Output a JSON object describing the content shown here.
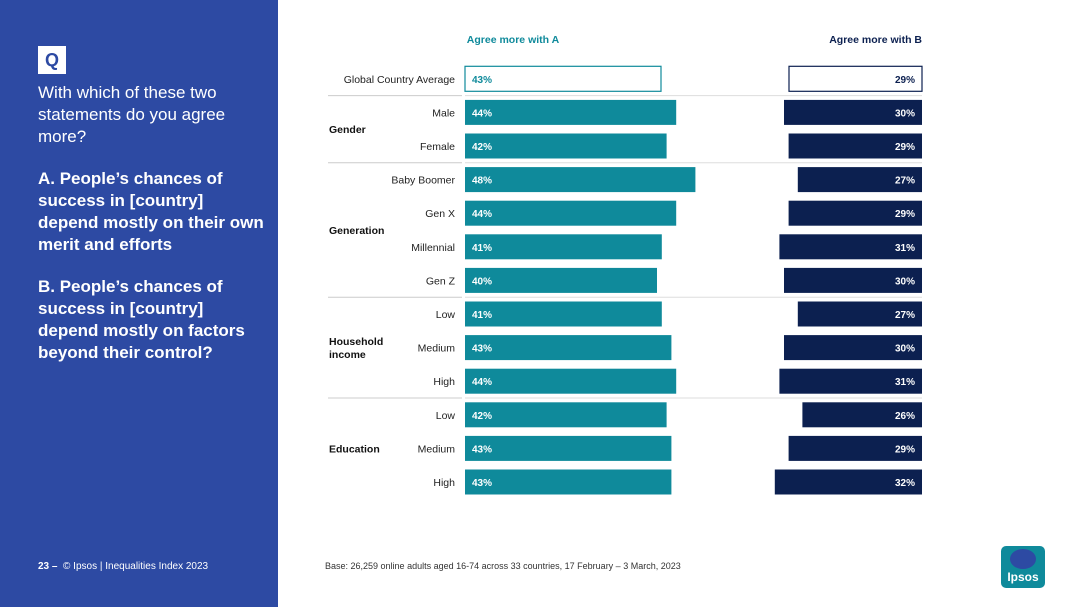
{
  "sidebar": {
    "q_badge": "Q",
    "question": "With which of these two statements do you agree more?",
    "statement_a": "A. People’s chances of success in [country] depend mostly on their own merit and efforts",
    "statement_b": "B. People’s chances of success in [country] depend mostly on factors beyond their control?",
    "page_number": "23 –",
    "footer_text": "© Ipsos | Inequalities Index 2023"
  },
  "base_note": "Base: 26,259 online adults aged 16-74 across 33 countries, 17 February – 3 March, 2023",
  "logo_text": "Ipsos",
  "colors": {
    "panel_bg": "#2d4aa3",
    "bar_a": "#0f8a9b",
    "bar_b": "#0c2050",
    "header_a": "#0f8a9b",
    "header_b": "#0c2050"
  },
  "chart_data": {
    "type": "bar",
    "title": "",
    "series": [
      {
        "name": "Agree more with A",
        "values": [
          43,
          44,
          42,
          48,
          44,
          41,
          40,
          41,
          43,
          44,
          42,
          43,
          43
        ]
      },
      {
        "name": "Agree more with B",
        "values": [
          29,
          30,
          29,
          27,
          29,
          31,
          30,
          27,
          30,
          31,
          26,
          29,
          32
        ]
      }
    ],
    "categories": [
      "Global Country Average",
      "Male",
      "Female",
      "Baby Boomer",
      "Gen X",
      "Millennial",
      "Gen Z",
      "Low",
      "Medium",
      "High",
      "Low",
      "Medium",
      "High"
    ],
    "groups": [
      {
        "name": "",
        "count": 1
      },
      {
        "name": "Gender",
        "count": 2
      },
      {
        "name": "Generation",
        "count": 4
      },
      {
        "name": "Household income",
        "count": 3
      },
      {
        "name": "Education",
        "count": 3
      }
    ],
    "value_suffix": "%",
    "highlight_first_row": true
  }
}
